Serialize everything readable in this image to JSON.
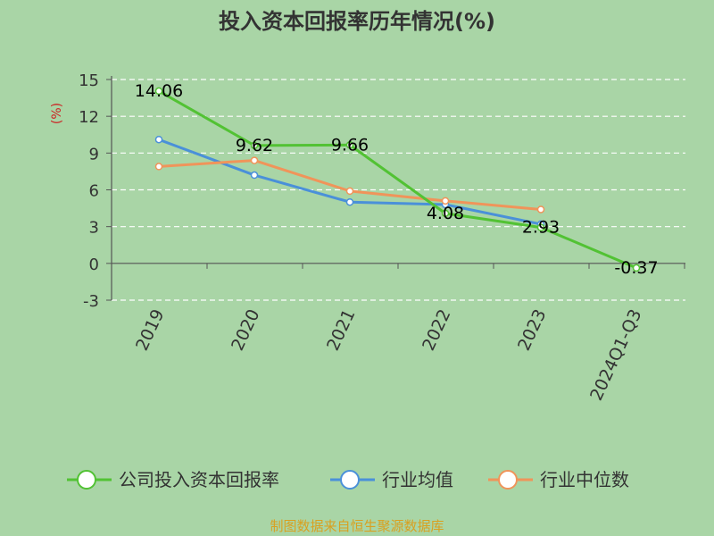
{
  "chart_data": {
    "type": "line",
    "title": "投入资本回报率历年情况(%)",
    "ylabel": "(%)",
    "xlabel": "",
    "categories": [
      "2019",
      "2020",
      "2021",
      "2022",
      "2023",
      "2024Q1-Q3"
    ],
    "ylim": [
      -3,
      15
    ],
    "yticks": [
      -3,
      0,
      3,
      6,
      9,
      12,
      15
    ],
    "grid": true,
    "legend_position": "bottom",
    "series": [
      {
        "name": "公司投入资本回报率",
        "color": "#52c234",
        "values": [
          14.06,
          9.62,
          9.66,
          4.08,
          2.93,
          -0.37
        ],
        "labels": [
          "14.06",
          "9.62",
          "9.66",
          "4.08",
          "2.93",
          "-0.37"
        ]
      },
      {
        "name": "行业均值",
        "color": "#4a90d9",
        "values": [
          10.1,
          7.2,
          5.0,
          4.8,
          3.2,
          null
        ]
      },
      {
        "name": "行业中位数",
        "color": "#f0945a",
        "values": [
          7.9,
          8.4,
          5.9,
          5.1,
          4.4,
          null
        ]
      }
    ]
  },
  "source": "制图数据来自恒生聚源数据库"
}
